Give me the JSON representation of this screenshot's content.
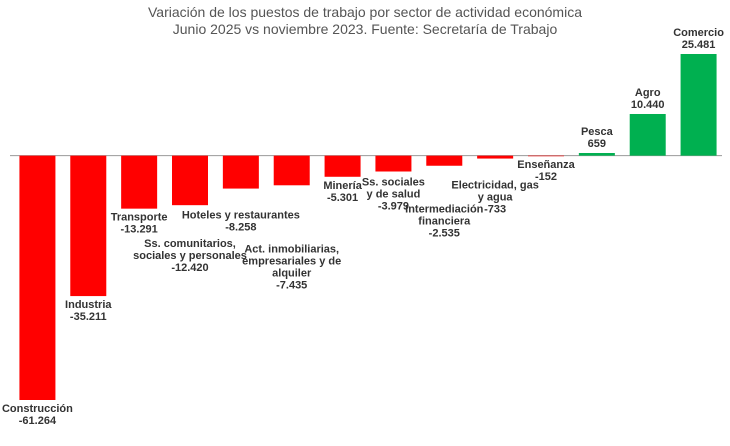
{
  "chart_data": {
    "type": "bar",
    "title": "Variación de los puestos de trabajo por sector de actividad económica",
    "subtitle": "Junio 2025 vs noviembre 2023. Fuente: Secretaría de Trabajo",
    "categories": [
      "Construcción",
      "Industria",
      "Transporte",
      "Ss. comunitarios,\nsociales y personales",
      "Hoteles y restaurantes",
      "Act. inmobiliarias,\nempresariales y de\nalquiler",
      "Minería",
      "Ss. sociales\ny de salud",
      "Intermediación\nfinanciera",
      "Electricidad, gas\ny agua",
      "Enseñanza",
      "Pesca",
      "Agro",
      "Comercio"
    ],
    "values": [
      -61264,
      -35211,
      -13291,
      -12420,
      -8258,
      -7435,
      -5301,
      -3979,
      -2535,
      -733,
      -152,
      659,
      10440,
      25481
    ],
    "value_labels": [
      "-61.264",
      "-35.211",
      "-13.291",
      "-12.420",
      "-8.258",
      "-7.435",
      "-5.301",
      "-3.979",
      "-2.535",
      "-733",
      "-152",
      "659",
      "10.440",
      "25.481"
    ],
    "negative_color": "#ff0000",
    "positive_color": "#00b050"
  }
}
